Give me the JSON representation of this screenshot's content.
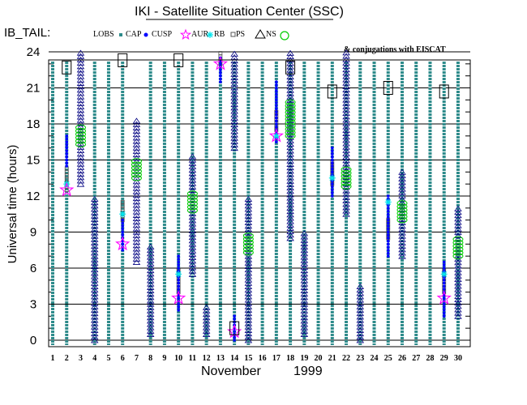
{
  "chart_data": {
    "type": "scatter",
    "title": "IKI - Satellite Situation Center (SSC)",
    "legend_title": "IB_TAIL:",
    "legend": [
      "LOBS",
      "CAP",
      "CUSP",
      "AUR",
      "RB",
      "PS",
      "NS"
    ],
    "note": "& conjugations with EISCAT",
    "xlabel_month": "November",
    "xlabel_year": "1999",
    "ylabel": "Universal time (hours)",
    "xlim": [
      1,
      30
    ],
    "ylim": [
      0,
      24
    ],
    "yticks": [
      "0",
      "3",
      "6",
      "9",
      "12",
      "15",
      "18",
      "21",
      "24"
    ],
    "ytick_values": [
      0,
      3,
      6,
      9,
      12,
      15,
      18,
      21,
      24
    ],
    "days": [
      1,
      2,
      3,
      4,
      5,
      6,
      7,
      8,
      9,
      10,
      11,
      12,
      13,
      14,
      15,
      16,
      17,
      18,
      19,
      20,
      21,
      22,
      23,
      24,
      25,
      26,
      27,
      28,
      29,
      30
    ],
    "day_labels": [
      "1",
      "2",
      "3",
      "4",
      "5",
      "6",
      "7",
      "8",
      "9",
      "10",
      "11",
      "12",
      "13",
      "14",
      "15",
      "16",
      "17",
      "18",
      "19",
      "20",
      "21",
      "22",
      "23",
      "24",
      "25",
      "26",
      "27",
      "28",
      "29",
      "30"
    ],
    "lobs_days": [
      1,
      2,
      4,
      5,
      6,
      8,
      9,
      10,
      11,
      12,
      13,
      14,
      15,
      16,
      17,
      18,
      19,
      20,
      21,
      22,
      23,
      24,
      25,
      26,
      27,
      28,
      29,
      30
    ],
    "ns_segments": [
      {
        "day": 3,
        "start": 13.0,
        "end": 24.0
      },
      {
        "day": 4,
        "start": 0.0,
        "end": 12.0
      },
      {
        "day": 7,
        "start": 6.5,
        "end": 18.5
      },
      {
        "day": 8,
        "start": 0.5,
        "end": 8.0
      },
      {
        "day": 11,
        "start": 5.5,
        "end": 15.5
      },
      {
        "day": 12,
        "start": 0.5,
        "end": 3.0
      },
      {
        "day": 14,
        "start": 16.0,
        "end": 24.0
      },
      {
        "day": 15,
        "start": 0.0,
        "end": 12.0
      },
      {
        "day": 18,
        "start": 8.5,
        "end": 24.0
      },
      {
        "day": 19,
        "start": 0.5,
        "end": 9.0
      },
      {
        "day": 22,
        "start": 10.5,
        "end": 24.0
      },
      {
        "day": 23,
        "start": 0.0,
        "end": 4.5
      },
      {
        "day": 26,
        "start": 7.0,
        "end": 14.0
      },
      {
        "day": 30,
        "start": 2.0,
        "end": 11.0
      }
    ],
    "cusp_segments": [
      {
        "day": 2,
        "start": 14.5,
        "end": 17.0
      },
      {
        "day": 6,
        "start": 7.5,
        "end": 10.0
      },
      {
        "day": 10,
        "start": 2.5,
        "end": 7.0
      },
      {
        "day": 13,
        "start": 21.5,
        "end": 23.5
      },
      {
        "day": 14,
        "start": 0.0,
        "end": 2.0
      },
      {
        "day": 17,
        "start": 16.5,
        "end": 21.5
      },
      {
        "day": 21,
        "start": 12.0,
        "end": 16.0
      },
      {
        "day": 25,
        "start": 7.0,
        "end": 12.0
      },
      {
        "day": 29,
        "start": 2.0,
        "end": 6.5
      }
    ],
    "ps_segments": [
      {
        "day": 2,
        "start": 12.5,
        "end": 14.5
      },
      {
        "day": 6,
        "start": 10.0,
        "end": 11.5
      },
      {
        "day": 10,
        "start": 4.0,
        "end": 6.0
      },
      {
        "day": 13,
        "start": 23.0,
        "end": 24.0
      },
      {
        "day": 17,
        "start": 17.5,
        "end": 19.0
      },
      {
        "day": 21,
        "start": 13.0,
        "end": 15.0
      },
      {
        "day": 25,
        "start": 8.5,
        "end": 10.0
      },
      {
        "day": 29,
        "start": 4.0,
        "end": 6.0
      }
    ],
    "rb_points": [
      {
        "day": 2,
        "ut": 13.0
      },
      {
        "day": 6,
        "ut": 10.5
      },
      {
        "day": 10,
        "ut": 5.5
      },
      {
        "day": 17,
        "ut": 17.0
      },
      {
        "day": 21,
        "ut": 13.5
      },
      {
        "day": 25,
        "ut": 11.5
      },
      {
        "day": 29,
        "ut": 5.5
      }
    ],
    "aur_points": [
      {
        "day": 2,
        "ut": 12.5
      },
      {
        "day": 6,
        "ut": 8.0
      },
      {
        "day": 10,
        "ut": 3.5
      },
      {
        "day": 13,
        "ut": 23.0
      },
      {
        "day": 14,
        "ut": 0.7
      },
      {
        "day": 17,
        "ut": 17.0
      },
      {
        "day": 29,
        "ut": 3.5
      }
    ],
    "eiscat_segments": [
      {
        "day": 3,
        "start": 16.3,
        "end": 17.7
      },
      {
        "day": 7,
        "start": 13.5,
        "end": 15.0
      },
      {
        "day": 11,
        "start": 10.8,
        "end": 12.2
      },
      {
        "day": 15,
        "start": 7.3,
        "end": 8.8
      },
      {
        "day": 18,
        "start": 17.0,
        "end": 20.0
      },
      {
        "day": 22,
        "start": 12.8,
        "end": 14.2
      },
      {
        "day": 26,
        "start": 10.0,
        "end": 11.5
      },
      {
        "day": 30,
        "start": 7.0,
        "end": 8.5
      }
    ],
    "ib_tail_boxes": [
      {
        "day": 2,
        "ut": 22.7
      },
      {
        "day": 6,
        "ut": 23.3
      },
      {
        "day": 10,
        "ut": 23.3
      },
      {
        "day": 14,
        "ut": 1.0
      },
      {
        "day": 18,
        "ut": 22.7
      },
      {
        "day": 21,
        "ut": 20.7
      },
      {
        "day": 25,
        "ut": 21.0
      },
      {
        "day": 29,
        "ut": 20.7
      }
    ],
    "colors": {
      "lobs": "#2e8b8b",
      "cap": "#2e8b8b",
      "cusp": "#0000ff",
      "aur": "#ff00ff",
      "rb": "#00e5ee",
      "ps": "#555555",
      "ns": "#000080",
      "eiscat": "#00cc00",
      "frame": "#000000"
    }
  }
}
